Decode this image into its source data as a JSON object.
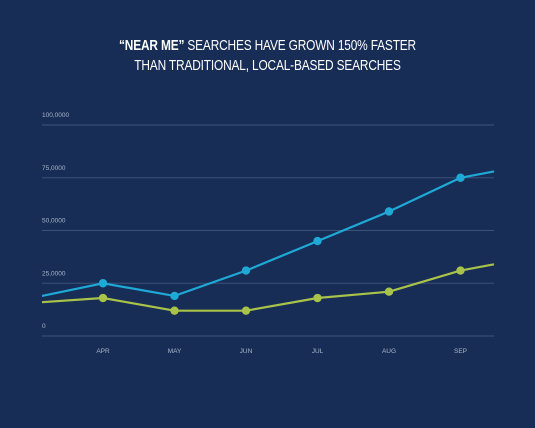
{
  "title": {
    "emphasis": "“NEAR ME”",
    "line1_rest": " SEARCHES HAVE GROWN 150% FASTER",
    "line2": "THAN TRADITIONAL, LOCAL-BASED SEARCHES"
  },
  "colors": {
    "background": "#172d55",
    "grid": "#3c5278",
    "tick_text": "#a9b6cc",
    "series_1": "#1fa9d6",
    "series_2": "#a8c24a"
  },
  "chart_data": {
    "type": "line",
    "title": "“NEAR ME” SEARCHES HAVE GROWN 150% FASTER THAN TRADITIONAL, LOCAL-BASED SEARCHES",
    "xlabel": "",
    "ylabel": "",
    "categories": [
      "APR",
      "MAY",
      "JUN",
      "JUL",
      "AUG",
      "SEP"
    ],
    "yticks": [
      "0",
      "25,0000",
      "50,0000",
      "75,0000",
      "100,0000"
    ],
    "ylim": [
      0,
      100
    ],
    "grid": true,
    "legend": "none",
    "series": [
      {
        "values": [
          25,
          19,
          31,
          45,
          59,
          75
        ],
        "lead_in": 19,
        "lead_out": 78,
        "color": "#1fa9d6"
      },
      {
        "values": [
          18,
          12,
          12,
          18,
          21,
          31
        ],
        "lead_in": 16,
        "lead_out": 34,
        "color": "#a8c24a"
      }
    ]
  }
}
